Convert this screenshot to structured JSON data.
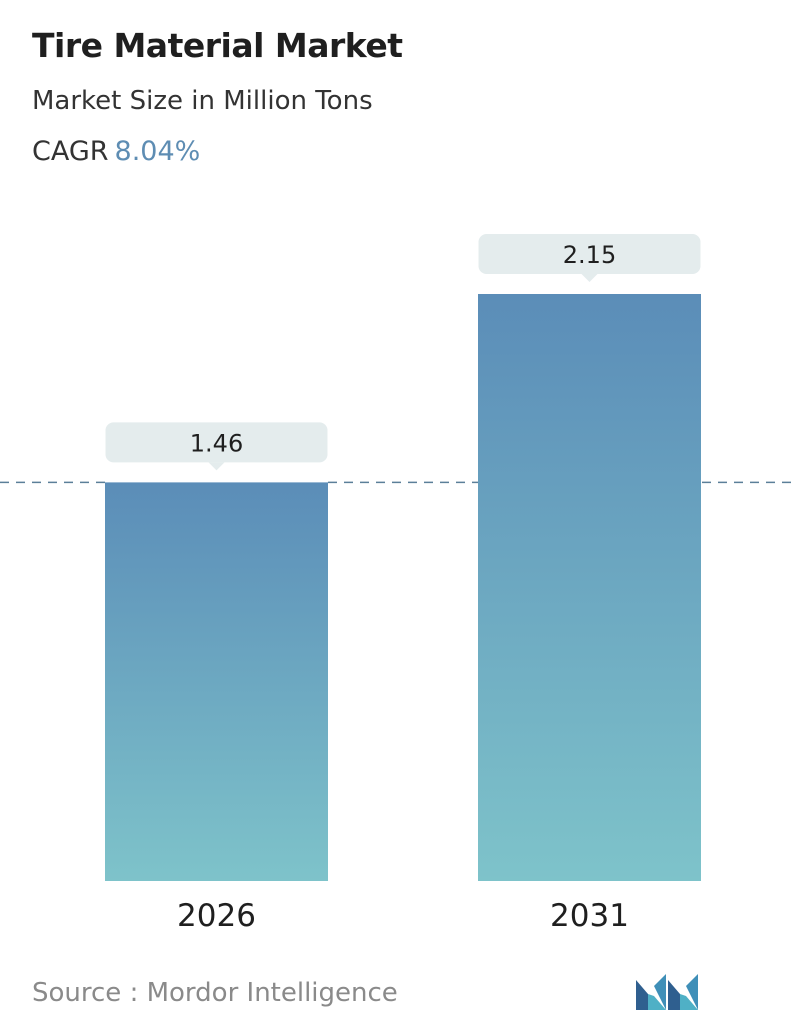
{
  "header": {
    "title": "Tire Material Market",
    "subtitle": "Market Size in Million Tons",
    "cagr_label": "CAGR",
    "cagr_value": "8.04%"
  },
  "footer": {
    "source": "Source :  Mordor Intelligence",
    "logo_icon": "mordor-intelligence-logo-icon"
  },
  "colors": {
    "bar_top": "#5b8db8",
    "bar_bottom": "#7ec3ca",
    "reference_line": "#5b7f99",
    "callout_bg": "#e4eced",
    "accent": "#5e8db3"
  },
  "chart_data": {
    "type": "bar",
    "title": "Tire Material Market",
    "ylabel": "Market Size in Million Tons",
    "categories": [
      "2026",
      "2031"
    ],
    "values": [
      1.46,
      2.15
    ],
    "value_labels": [
      "1.46",
      "2.15"
    ],
    "ylim": [
      0,
      2.15
    ],
    "grid": false,
    "reference_line": "dashed at first bar value"
  }
}
